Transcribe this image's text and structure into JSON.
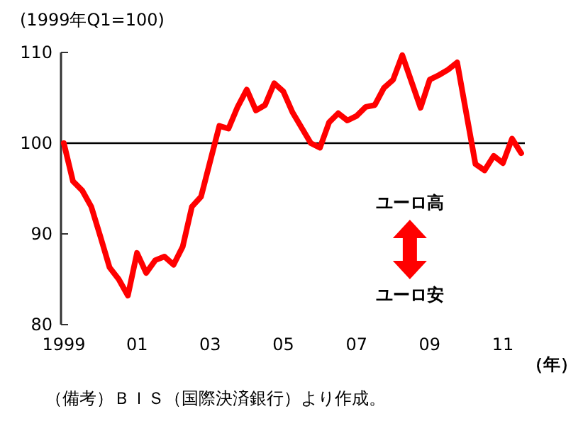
{
  "chart_data": {
    "type": "line",
    "ylabel": "(1999年Q1=100)",
    "xlabel": "（年）",
    "x": [
      1999,
      1999.25,
      1999.5,
      1999.75,
      2000,
      2000.25,
      2000.5,
      2000.75,
      2001,
      2001.25,
      2001.5,
      2001.75,
      2002,
      2002.25,
      2002.5,
      2002.75,
      2003,
      2003.25,
      2003.5,
      2003.75,
      2004,
      2004.25,
      2004.5,
      2004.75,
      2005,
      2005.25,
      2005.75,
      2006,
      2006.25,
      2006.5,
      2006.75,
      2007,
      2007.25,
      2007.5,
      2007.75,
      2008,
      2008.25,
      2008.75,
      2009,
      2009.25,
      2009.5,
      2009.75,
      2010.25,
      2010.5,
      2010.75,
      2011,
      2011.25,
      2011.5
    ],
    "series": [
      {
        "color": "#ff0000",
        "values": [
          100,
          95.8,
          94.8,
          93,
          89.7,
          86.3,
          85,
          83.2,
          87.9,
          85.7,
          87.1,
          87.5,
          86.6,
          88.6,
          93,
          94.1,
          98,
          101.9,
          101.6,
          104,
          105.9,
          103.6,
          104.2,
          106.6,
          105.7,
          103.4,
          100,
          99.5,
          102.3,
          103.3,
          102.5,
          103,
          104,
          104.2,
          106.1,
          107,
          109.7,
          103.9,
          107,
          107.5,
          108.1,
          108.9,
          97.7,
          97,
          98.6,
          97.8,
          100.5,
          98.9
        ]
      }
    ],
    "xlim": [
      1999,
      2011.6
    ],
    "ylim": [
      80,
      110
    ],
    "xticks": [
      1999,
      {
        "value": 2001,
        "label": "01"
      },
      {
        "value": 2003,
        "label": "03"
      },
      {
        "value": 2005,
        "label": "05"
      },
      {
        "value": 2007,
        "label": "07"
      },
      {
        "value": 2009,
        "label": "09"
      },
      {
        "value": 2011,
        "label": "11"
      }
    ],
    "yticks": [
      80,
      90,
      100,
      110
    ],
    "ref_lines": [
      {
        "axis": "y",
        "value": 100,
        "color": "#000000"
      }
    ],
    "grid": false,
    "line_style": "solid",
    "annotations": [
      "ユーロ高",
      "ユーロ安",
      "（備考）ＢＩＳ（国際決済銀行）より作成。"
    ]
  }
}
